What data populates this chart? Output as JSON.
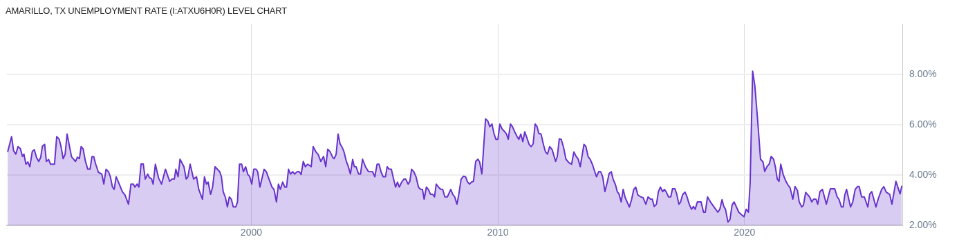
{
  "chart_data": {
    "type": "area",
    "title": "AMARILLO, TX UNEMPLOYMENT RATE (I:ATXU6H0R) LEVEL CHART",
    "x": [
      1990.12,
      1990.28,
      1990.36,
      1990.45,
      1990.54,
      1990.64,
      1990.72,
      1990.78,
      1990.86,
      1990.94,
      1991.02,
      1991.12,
      1991.2,
      1991.29,
      1991.38,
      1991.46,
      1991.53,
      1991.62,
      1991.69,
      1991.78,
      1991.86,
      1992.02,
      1992.11,
      1992.21,
      1992.28,
      1992.37,
      1992.45,
      1992.53,
      1992.71,
      1992.87,
      1992.95,
      1993.03,
      1993.1,
      1993.18,
      1993.27,
      1993.37,
      1993.46,
      1993.54,
      1993.61,
      1993.69,
      1993.8,
      1993.94,
      1994.02,
      1994.11,
      1994.21,
      1994.28,
      1994.37,
      1994.44,
      1994.52,
      1994.62,
      1994.77,
      1994.88,
      1995.02,
      1995.12,
      1995.22,
      1995.28,
      1995.37,
      1995.44,
      1995.53,
      1995.62,
      1995.7,
      1995.8,
      1995.87,
      1995.95,
      1996.02,
      1996.11,
      1996.24,
      1996.36,
      1996.52,
      1996.69,
      1996.78,
      1996.88,
      1996.94,
      1997.03,
      1997.11,
      1997.27,
      1997.36,
      1997.43,
      1997.52,
      1997.66,
      1997.78,
      1997.87,
      1998.02,
      1998.1,
      1998.18,
      1998.25,
      1998.35,
      1998.43,
      1998.53,
      1998.72,
      1998.79,
      1998.86,
      1998.95,
      1999.03,
      1999.11,
      1999.19,
      1999.27,
      1999.37,
      1999.44,
      1999.52,
      1999.61,
      1999.68,
      1999.77,
      1999.86,
      1999.93,
      2000.02,
      2000.1,
      2000.19,
      2000.26,
      2000.35,
      2000.52,
      2000.61,
      2000.75,
      2000.84,
      2000.92,
      2001.02,
      2001.1,
      2001.18,
      2001.27,
      2001.36,
      2001.43,
      2001.51,
      2001.59,
      2001.68,
      2001.76,
      2001.87,
      2001.95,
      2002.02,
      2002.11,
      2002.19,
      2002.29,
      2002.43,
      2002.51,
      2002.62,
      2002.71,
      2002.82,
      2002.93,
      2003.02,
      2003.1,
      2003.2,
      2003.3,
      2003.36,
      2003.44,
      2003.52,
      2003.6,
      2003.68,
      2003.76,
      2003.85,
      2003.92,
      2004.02,
      2004.11,
      2004.18,
      2004.25,
      2004.35,
      2004.43,
      2004.51,
      2004.63,
      2004.75,
      2004.92,
      2005.01,
      2005.1,
      2005.18,
      2005.26,
      2005.35,
      2005.44,
      2005.51,
      2005.59,
      2005.68,
      2005.77,
      2005.85,
      2005.93,
      2006.0,
      2006.1,
      2006.19,
      2006.26,
      2006.36,
      2006.43,
      2006.5,
      2006.59,
      2006.68,
      2006.78,
      2006.86,
      2006.94,
      2007.01,
      2007.1,
      2007.18,
      2007.27,
      2007.36,
      2007.43,
      2007.5,
      2007.59,
      2007.68,
      2007.76,
      2007.85,
      2007.95,
      2008.09,
      2008.17,
      2008.25,
      2008.34,
      2008.41,
      2008.51,
      2008.6,
      2008.69,
      2008.77,
      2008.85,
      2008.93,
      2009.01,
      2009.1,
      2009.19,
      2009.26,
      2009.35,
      2009.5,
      2009.59,
      2009.67,
      2009.76,
      2009.84,
      2009.92,
      2010.0,
      2010.08,
      2010.17,
      2010.26,
      2010.35,
      2010.42,
      2010.51,
      2010.59,
      2010.68,
      2010.78,
      2010.85,
      2010.93,
      2011.01,
      2011.09,
      2011.18,
      2011.27,
      2011.35,
      2011.43,
      2011.51,
      2011.59,
      2011.66,
      2011.75,
      2011.85,
      2011.93,
      2012.01,
      2012.1,
      2012.2,
      2012.34,
      2012.41,
      2012.49,
      2012.57,
      2012.66,
      2012.76,
      2012.88,
      2012.99,
      2013.08,
      2013.18,
      2013.25,
      2013.34,
      2013.49,
      2013.57,
      2013.66,
      2013.74,
      2013.83,
      2013.93,
      2014.0,
      2014.09,
      2014.17,
      2014.25,
      2014.34,
      2014.44,
      2014.51,
      2014.6,
      2014.67,
      2014.77,
      2014.84,
      2014.91,
      2015.0,
      2015.08,
      2015.16,
      2015.33,
      2015.42,
      2015.51,
      2015.59,
      2015.68,
      2015.8,
      2015.89,
      2016.0,
      2016.09,
      2016.19,
      2016.26,
      2016.34,
      2016.43,
      2016.51,
      2016.59,
      2016.68,
      2016.75,
      2016.82,
      2016.92,
      2017.01,
      2017.08,
      2017.18,
      2017.25,
      2017.34,
      2017.41,
      2017.49,
      2017.59,
      2017.66,
      2017.76,
      2017.85,
      2017.93,
      2018.0,
      2018.09,
      2018.24,
      2018.34,
      2018.41,
      2018.5,
      2018.62,
      2018.8,
      2018.92,
      2019.0,
      2019.09,
      2019.16,
      2019.23,
      2019.33,
      2019.41,
      2019.5,
      2019.58,
      2019.77,
      2019.87,
      2019.98,
      2020.07,
      2020.16,
      2020.23,
      2020.33,
      2020.42,
      2020.54,
      2020.65,
      2020.75,
      2020.82,
      2020.91,
      2021.01,
      2021.08,
      2021.18,
      2021.25,
      2021.33,
      2021.4,
      2021.47,
      2021.57,
      2021.66,
      2021.76,
      2021.85,
      2021.96,
      2022.05,
      2022.15,
      2022.22,
      2022.32,
      2022.39,
      2022.48,
      2022.64,
      2022.73,
      2022.8,
      2022.9,
      2022.97,
      2023.06,
      2023.16,
      2023.32,
      2023.48,
      2023.66,
      2023.76,
      2023.83,
      2023.93,
      2024.0,
      2024.07,
      2024.14,
      2024.3,
      2024.39,
      2024.49,
      2024.58,
      2024.65,
      2024.75,
      2024.86,
      2025.0,
      2025.08,
      2025.16,
      2025.33,
      2025.42,
      2025.56,
      2025.65,
      2025.75,
      2025.89,
      2025.98,
      2026.14,
      2026.31,
      2026.38
    ],
    "series": [
      {
        "color": "#6633cc",
        "values": [
          4.92,
          5.53,
          4.97,
          4.83,
          5.13,
          5.04,
          4.74,
          4.83,
          4.43,
          4.52,
          4.33,
          4.94,
          5.01,
          4.7,
          4.54,
          4.7,
          5.15,
          5.22,
          4.54,
          4.62,
          4.43,
          4.43,
          5.53,
          5.42,
          5.15,
          4.65,
          4.82,
          5.63,
          4.73,
          4.54,
          4.71,
          4.65,
          5.13,
          5.04,
          4.56,
          4.23,
          4.23,
          4.73,
          4.73,
          4.43,
          4.11,
          4.04,
          3.64,
          4.23,
          4.13,
          3.95,
          3.52,
          3.43,
          3.93,
          3.7,
          3.34,
          3.2,
          2.84,
          3.64,
          3.64,
          3.52,
          3.64,
          3.52,
          4.44,
          4.44,
          3.84,
          4.04,
          3.89,
          3.86,
          3.64,
          4.43,
          3.88,
          3.64,
          4.23,
          3.75,
          3.84,
          3.84,
          4.23,
          3.93,
          4.63,
          4.33,
          3.84,
          3.93,
          4.43,
          3.84,
          3.93,
          3.43,
          3.04,
          3.93,
          3.64,
          3.72,
          3.23,
          3.52,
          4.33,
          4.13,
          3.93,
          3.34,
          3.11,
          2.73,
          3.13,
          3.04,
          2.73,
          2.73,
          2.93,
          4.43,
          4.43,
          4.13,
          4.33,
          4.02,
          3.95,
          3.64,
          4.23,
          4.23,
          4.13,
          3.52,
          4.23,
          4.13,
          3.75,
          3.52,
          3.43,
          2.93,
          3.64,
          3.43,
          3.72,
          3.52,
          3.52,
          4.23,
          4.04,
          4.13,
          4.04,
          4.14,
          4.13,
          4.02,
          4.54,
          4.33,
          4.43,
          4.33,
          5.13,
          4.92,
          4.82,
          4.54,
          4.74,
          4.33,
          5.03,
          4.92,
          4.7,
          4.65,
          4.82,
          5.63,
          5.24,
          5.11,
          4.92,
          4.56,
          4.38,
          4.04,
          4.62,
          4.33,
          4.33,
          4.04,
          4.04,
          4.63,
          4.33,
          4.14,
          4.13,
          3.93,
          4.43,
          4.43,
          4.13,
          3.93,
          3.93,
          4.33,
          4.23,
          4.23,
          3.84,
          3.52,
          3.72,
          3.52,
          3.72,
          3.84,
          3.84,
          3.64,
          3.75,
          4.23,
          4.13,
          3.93,
          3.52,
          3.43,
          3.43,
          3.04,
          3.52,
          3.43,
          3.23,
          3.23,
          3.13,
          3.64,
          3.52,
          3.43,
          3.43,
          3.13,
          3.13,
          3.43,
          3.23,
          3.13,
          2.84,
          3.2,
          3.84,
          3.95,
          3.93,
          3.72,
          3.64,
          3.72,
          3.75,
          4.54,
          4.63,
          4.52,
          4.04,
          6.23,
          6.15,
          5.92,
          6.03,
          5.65,
          5.42,
          5.42,
          6.03,
          5.83,
          5.74,
          5.63,
          5.42,
          6.03,
          5.92,
          5.72,
          5.53,
          5.42,
          5.63,
          5.33,
          5.72,
          5.47,
          5.21,
          5.13,
          5.24,
          6.03,
          5.92,
          5.65,
          5.63,
          5.2,
          4.92,
          4.83,
          5.13,
          5.01,
          4.54,
          4.74,
          5.44,
          5.42,
          5.11,
          4.63,
          4.49,
          4.43,
          4.92,
          4.73,
          4.65,
          4.33,
          5.22,
          5.13,
          4.73,
          4.63,
          4.43,
          4.13,
          3.93,
          4.14,
          4.13,
          3.93,
          3.34,
          3.73,
          4.06,
          4.13,
          3.84,
          3.61,
          3.34,
          3.25,
          2.93,
          3.43,
          3.11,
          2.73,
          3.02,
          3.43,
          3.52,
          3.2,
          3.13,
          3.1,
          2.84,
          3.13,
          3.04,
          3.04,
          2.75,
          2.84,
          3.34,
          3.52,
          3.34,
          3.43,
          3.34,
          3.13,
          3.13,
          3.45,
          3.45,
          3.25,
          2.84,
          2.93,
          3.22,
          3.32,
          3.16,
          2.84,
          2.64,
          2.75,
          2.64,
          2.93,
          2.93,
          2.52,
          2.52,
          3.13,
          2.93,
          2.68,
          2.52,
          2.64,
          3.02,
          2.75,
          2.64,
          2.13,
          2.23,
          2.82,
          2.93,
          2.52,
          2.43,
          2.34,
          2.64,
          2.52,
          3.7,
          8.13,
          7.55,
          6.1,
          4.63,
          4.52,
          4.14,
          4.33,
          4.45,
          4.74,
          4.63,
          4.33,
          3.84,
          3.75,
          4.43,
          4.02,
          3.79,
          3.61,
          3.49,
          3.04,
          3.54,
          3.38,
          2.93,
          2.73,
          2.8,
          3.31,
          3.13,
          2.93,
          3.04,
          3.04,
          2.84,
          3.34,
          3.43,
          2.84,
          3.45,
          3.45,
          3.13,
          3.04,
          2.73,
          2.73,
          3.22,
          3.43,
          2.73,
          2.93,
          3.43,
          3.54,
          3.54,
          3.13,
          3.13,
          2.73,
          3.25,
          3.34,
          2.73,
          3.04,
          3.43,
          3.54,
          3.32,
          3.23,
          2.84,
          3.75,
          3.25,
          3.57
        ]
      }
    ],
    "xlim": [
      1990.09,
      2026.4
    ],
    "xticks": [
      2000,
      2010,
      2020
    ],
    "ylim": [
      2,
      10
    ],
    "yticks": [
      {
        "value": 2,
        "label": "2.00%"
      },
      {
        "value": 4,
        "label": "4.00%"
      },
      {
        "value": 6,
        "label": "6.00%"
      },
      {
        "value": 8,
        "label": "8.00%"
      }
    ],
    "grid": true
  }
}
